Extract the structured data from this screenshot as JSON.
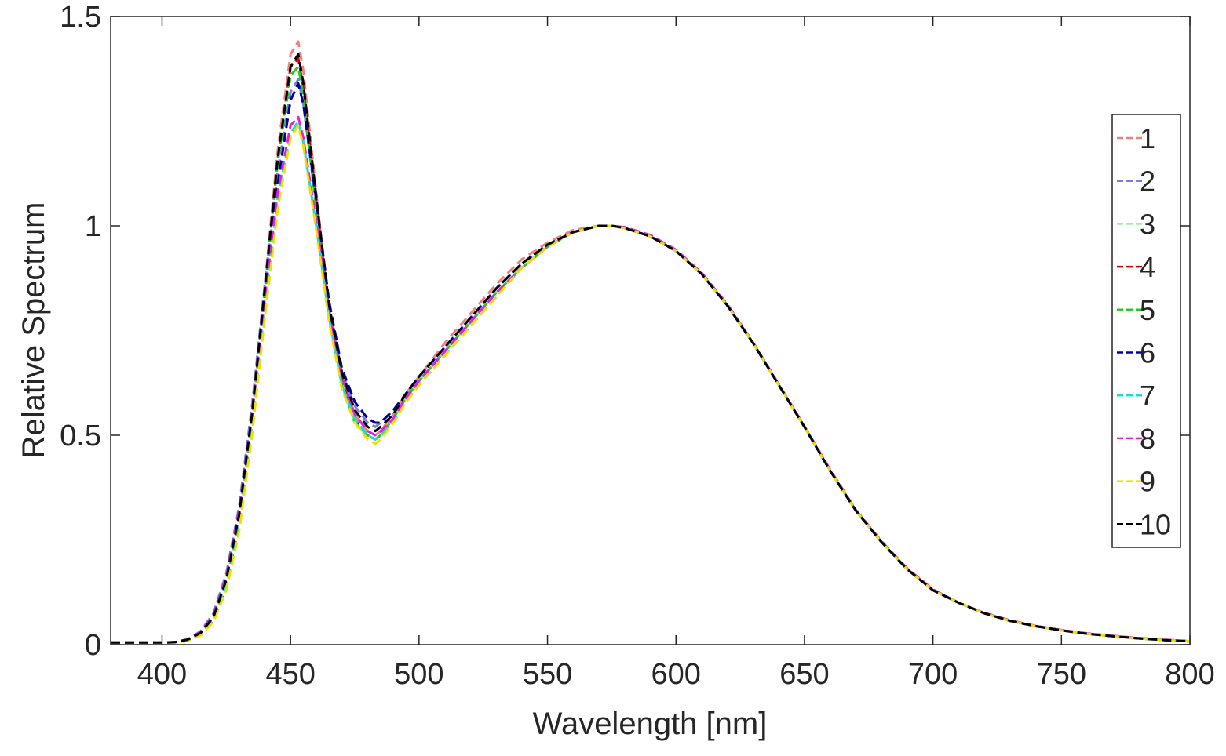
{
  "chart_data": {
    "type": "line",
    "title": "",
    "xlabel": "Wavelength [nm]",
    "ylabel": "Relative Spectrum",
    "xlim": [
      380,
      800
    ],
    "ylim": [
      0,
      1.5
    ],
    "xticks": [
      400,
      450,
      500,
      550,
      600,
      650,
      700,
      750,
      800
    ],
    "yticks": [
      0,
      0.5,
      1,
      1.5
    ],
    "xtick_labels": [
      "400",
      "450",
      "500",
      "550",
      "600",
      "650",
      "700",
      "750",
      "800"
    ],
    "ytick_labels": [
      "0",
      "0.5",
      "1",
      "1.5"
    ],
    "grid": false,
    "legend_position": "right",
    "line_style": "dashed",
    "x": [
      380,
      400,
      405,
      410,
      415,
      420,
      425,
      430,
      435,
      440,
      445,
      450,
      453,
      455,
      460,
      465,
      470,
      475,
      480,
      483,
      485,
      490,
      495,
      500,
      510,
      520,
      530,
      540,
      550,
      560,
      570,
      575,
      580,
      590,
      600,
      610,
      620,
      630,
      640,
      650,
      660,
      670,
      680,
      690,
      700,
      710,
      720,
      730,
      740,
      750,
      760,
      770,
      780,
      790,
      800
    ],
    "series": [
      {
        "name": "1",
        "color": "#f08080",
        "values": [
          0.005,
          0.005,
          0.006,
          0.012,
          0.03,
          0.07,
          0.16,
          0.32,
          0.56,
          0.86,
          1.18,
          1.41,
          1.44,
          1.37,
          1.08,
          0.8,
          0.64,
          0.55,
          0.51,
          0.5,
          0.51,
          0.55,
          0.6,
          0.64,
          0.72,
          0.79,
          0.86,
          0.92,
          0.96,
          0.99,
          1.0,
          1.0,
          0.995,
          0.975,
          0.94,
          0.885,
          0.81,
          0.72,
          0.62,
          0.52,
          0.415,
          0.32,
          0.245,
          0.18,
          0.13,
          0.1,
          0.075,
          0.057,
          0.044,
          0.034,
          0.026,
          0.02,
          0.015,
          0.011,
          0.008
        ]
      },
      {
        "name": "2",
        "color": "#7b7bdc",
        "values": [
          0.005,
          0.005,
          0.006,
          0.013,
          0.032,
          0.075,
          0.17,
          0.33,
          0.57,
          0.86,
          1.13,
          1.32,
          1.35,
          1.29,
          1.05,
          0.8,
          0.65,
          0.57,
          0.53,
          0.52,
          0.53,
          0.56,
          0.6,
          0.64,
          0.71,
          0.78,
          0.85,
          0.91,
          0.955,
          0.985,
          1.0,
          1.0,
          0.995,
          0.975,
          0.94,
          0.885,
          0.81,
          0.72,
          0.62,
          0.52,
          0.415,
          0.32,
          0.245,
          0.18,
          0.13,
          0.1,
          0.075,
          0.057,
          0.044,
          0.034,
          0.026,
          0.02,
          0.015,
          0.011,
          0.008
        ]
      },
      {
        "name": "3",
        "color": "#90ee90",
        "values": [
          0.005,
          0.005,
          0.005,
          0.01,
          0.025,
          0.06,
          0.14,
          0.29,
          0.52,
          0.8,
          1.06,
          1.22,
          1.25,
          1.2,
          1.0,
          0.78,
          0.62,
          0.53,
          0.5,
          0.49,
          0.5,
          0.54,
          0.59,
          0.63,
          0.7,
          0.77,
          0.84,
          0.9,
          0.95,
          0.985,
          1.0,
          1.0,
          0.995,
          0.975,
          0.94,
          0.885,
          0.81,
          0.72,
          0.62,
          0.52,
          0.415,
          0.32,
          0.245,
          0.18,
          0.13,
          0.1,
          0.075,
          0.057,
          0.044,
          0.034,
          0.026,
          0.02,
          0.015,
          0.011,
          0.008
        ]
      },
      {
        "name": "4",
        "color": "#d00000",
        "values": [
          0.005,
          0.005,
          0.005,
          0.01,
          0.025,
          0.06,
          0.14,
          0.29,
          0.53,
          0.84,
          1.16,
          1.38,
          1.4,
          1.33,
          1.06,
          0.79,
          0.63,
          0.54,
          0.5,
          0.49,
          0.5,
          0.54,
          0.59,
          0.63,
          0.7,
          0.77,
          0.84,
          0.9,
          0.95,
          0.985,
          1.0,
          1.0,
          0.995,
          0.975,
          0.94,
          0.885,
          0.81,
          0.72,
          0.62,
          0.52,
          0.415,
          0.32,
          0.245,
          0.18,
          0.13,
          0.1,
          0.075,
          0.057,
          0.044,
          0.034,
          0.026,
          0.02,
          0.015,
          0.011,
          0.008
        ]
      },
      {
        "name": "5",
        "color": "#22cc22",
        "values": [
          0.005,
          0.005,
          0.005,
          0.01,
          0.025,
          0.062,
          0.145,
          0.3,
          0.54,
          0.85,
          1.15,
          1.36,
          1.38,
          1.31,
          1.04,
          0.78,
          0.62,
          0.53,
          0.5,
          0.49,
          0.5,
          0.54,
          0.59,
          0.63,
          0.7,
          0.77,
          0.84,
          0.9,
          0.95,
          0.985,
          1.0,
          1.0,
          0.995,
          0.975,
          0.94,
          0.885,
          0.81,
          0.72,
          0.62,
          0.52,
          0.415,
          0.32,
          0.245,
          0.18,
          0.13,
          0.1,
          0.075,
          0.057,
          0.044,
          0.034,
          0.026,
          0.02,
          0.015,
          0.011,
          0.008
        ]
      },
      {
        "name": "6",
        "color": "#0000a0",
        "values": [
          0.005,
          0.005,
          0.006,
          0.012,
          0.03,
          0.07,
          0.16,
          0.32,
          0.55,
          0.83,
          1.1,
          1.3,
          1.34,
          1.29,
          1.06,
          0.82,
          0.66,
          0.58,
          0.54,
          0.53,
          0.53,
          0.56,
          0.6,
          0.64,
          0.71,
          0.78,
          0.85,
          0.91,
          0.955,
          0.985,
          1.0,
          1.0,
          0.995,
          0.975,
          0.94,
          0.885,
          0.81,
          0.72,
          0.62,
          0.52,
          0.415,
          0.32,
          0.245,
          0.18,
          0.13,
          0.1,
          0.075,
          0.057,
          0.044,
          0.034,
          0.026,
          0.02,
          0.015,
          0.011,
          0.008
        ]
      },
      {
        "name": "7",
        "color": "#20d8d8",
        "values": [
          0.005,
          0.005,
          0.005,
          0.01,
          0.025,
          0.062,
          0.145,
          0.3,
          0.53,
          0.81,
          1.07,
          1.22,
          1.25,
          1.2,
          1.0,
          0.78,
          0.62,
          0.54,
          0.5,
          0.49,
          0.5,
          0.53,
          0.58,
          0.62,
          0.69,
          0.76,
          0.83,
          0.9,
          0.95,
          0.985,
          1.0,
          1.0,
          0.995,
          0.975,
          0.94,
          0.885,
          0.81,
          0.72,
          0.62,
          0.52,
          0.415,
          0.32,
          0.245,
          0.18,
          0.13,
          0.1,
          0.075,
          0.057,
          0.044,
          0.034,
          0.026,
          0.02,
          0.015,
          0.011,
          0.008
        ]
      },
      {
        "name": "8",
        "color": "#e020e0",
        "values": [
          0.005,
          0.005,
          0.006,
          0.012,
          0.03,
          0.07,
          0.16,
          0.32,
          0.55,
          0.83,
          1.08,
          1.24,
          1.26,
          1.21,
          1.01,
          0.79,
          0.64,
          0.55,
          0.51,
          0.5,
          0.51,
          0.54,
          0.59,
          0.63,
          0.7,
          0.77,
          0.84,
          0.9,
          0.95,
          0.985,
          1.0,
          1.0,
          0.997,
          0.978,
          0.943,
          0.888,
          0.813,
          0.722,
          0.622,
          0.522,
          0.418,
          0.322,
          0.247,
          0.182,
          0.132,
          0.1,
          0.076,
          0.058,
          0.045,
          0.035,
          0.027,
          0.021,
          0.016,
          0.012,
          0.008
        ]
      },
      {
        "name": "9",
        "color": "#f0e000",
        "values": [
          0.005,
          0.005,
          0.005,
          0.009,
          0.022,
          0.055,
          0.13,
          0.27,
          0.5,
          0.78,
          1.04,
          1.21,
          1.24,
          1.19,
          0.99,
          0.77,
          0.61,
          0.53,
          0.49,
          0.48,
          0.49,
          0.53,
          0.58,
          0.62,
          0.69,
          0.76,
          0.83,
          0.9,
          0.95,
          0.985,
          1.0,
          1.0,
          0.995,
          0.975,
          0.94,
          0.885,
          0.81,
          0.72,
          0.62,
          0.52,
          0.415,
          0.32,
          0.245,
          0.18,
          0.13,
          0.1,
          0.075,
          0.057,
          0.044,
          0.034,
          0.026,
          0.02,
          0.015,
          0.011,
          0.008
        ]
      },
      {
        "name": "10",
        "color": "#000000",
        "values": [
          0.005,
          0.005,
          0.006,
          0.012,
          0.028,
          0.066,
          0.155,
          0.31,
          0.55,
          0.85,
          1.16,
          1.38,
          1.41,
          1.34,
          1.07,
          0.81,
          0.65,
          0.56,
          0.52,
          0.51,
          0.52,
          0.55,
          0.6,
          0.64,
          0.71,
          0.78,
          0.85,
          0.91,
          0.955,
          0.985,
          1.0,
          1.0,
          0.995,
          0.975,
          0.94,
          0.885,
          0.81,
          0.72,
          0.62,
          0.52,
          0.415,
          0.32,
          0.245,
          0.18,
          0.13,
          0.1,
          0.075,
          0.057,
          0.044,
          0.034,
          0.026,
          0.02,
          0.015,
          0.011,
          0.008
        ]
      }
    ]
  }
}
